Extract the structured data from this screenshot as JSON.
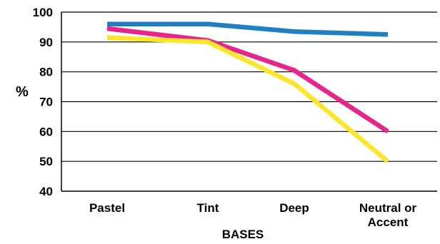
{
  "chart_data": {
    "type": "line",
    "categories": [
      "Pastel",
      "Tint",
      "Deep",
      "Neutral or Accent"
    ],
    "category_lines": [
      [
        "Pastel"
      ],
      [
        "Tint"
      ],
      [
        "Deep"
      ],
      [
        "Neutral or",
        "Accent"
      ]
    ],
    "series": [
      {
        "color": "#1f7fc1",
        "values": [
          96,
          96,
          93.5,
          92.5
        ]
      },
      {
        "color": "#e8238a",
        "values": [
          94.5,
          90.5,
          80.5,
          60
        ]
      },
      {
        "color": "#fde52a",
        "values": [
          91.5,
          90,
          76,
          50
        ]
      }
    ],
    "xlabel": "BASES",
    "ylabel": "%",
    "ylim": [
      40,
      100
    ],
    "yticks": [
      40,
      50,
      60,
      70,
      80,
      90,
      100
    ],
    "grid": true,
    "background": "#ffffff"
  }
}
